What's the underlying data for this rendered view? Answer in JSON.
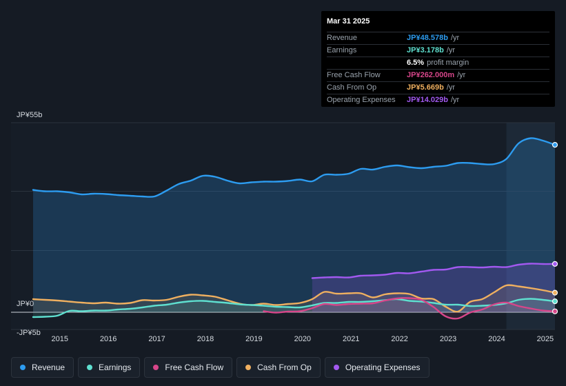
{
  "tooltip": {
    "date": "Mar 31 2025",
    "rows": [
      {
        "label": "Revenue",
        "value": "JP¥48.578b",
        "unit": "/yr",
        "color": "#2d9cf0"
      },
      {
        "label": "Earnings",
        "value": "JP¥3.178b",
        "unit": "/yr",
        "color": "#5fe0d0"
      },
      {
        "label": "",
        "value": "6.5%",
        "unit": "profit margin",
        "color": "#ffffff"
      },
      {
        "label": "Free Cash Flow",
        "value": "JP¥262.000m",
        "unit": "/yr",
        "color": "#d7468a"
      },
      {
        "label": "Cash From Op",
        "value": "JP¥5.669b",
        "unit": "/yr",
        "color": "#f0b060"
      },
      {
        "label": "Operating Expenses",
        "value": "JP¥14.029b",
        "unit": "/yr",
        "color": "#a259f0"
      }
    ]
  },
  "legend": [
    {
      "label": "Revenue",
      "color": "#2d9cf0"
    },
    {
      "label": "Earnings",
      "color": "#5fe0d0"
    },
    {
      "label": "Free Cash Flow",
      "color": "#d7468a"
    },
    {
      "label": "Cash From Op",
      "color": "#f0b060"
    },
    {
      "label": "Operating Expenses",
      "color": "#a259f0"
    }
  ],
  "chart_data": {
    "type": "area",
    "title": "",
    "xlabel": "",
    "ylabel": "",
    "y_tick_labels": [
      {
        "label": "JP¥55b",
        "value": 55
      },
      {
        "label": "JP¥0",
        "value": 0
      },
      {
        "label": "-JP¥5b",
        "value": -5
      }
    ],
    "ylim": [
      -5,
      55
    ],
    "xlim": [
      2014.5,
      2025.25
    ],
    "x_ticks": [
      2015,
      2016,
      2017,
      2018,
      2019,
      2020,
      2021,
      2022,
      2023,
      2024,
      2025
    ],
    "highlight_from": 2024.25,
    "series": [
      {
        "name": "Revenue",
        "color": "#2d9cf0",
        "points": [
          [
            2014.5,
            35.5
          ],
          [
            2014.75,
            35.1
          ],
          [
            2015.0,
            35.1
          ],
          [
            2015.25,
            34.8
          ],
          [
            2015.5,
            34.2
          ],
          [
            2015.75,
            34.4
          ],
          [
            2016.0,
            34.3
          ],
          [
            2016.25,
            34.0
          ],
          [
            2016.5,
            33.8
          ],
          [
            2016.75,
            33.6
          ],
          [
            2017.0,
            33.6
          ],
          [
            2017.25,
            35.3
          ],
          [
            2017.5,
            37.2
          ],
          [
            2017.75,
            38.2
          ],
          [
            2018.0,
            39.6
          ],
          [
            2018.25,
            39.3
          ],
          [
            2018.5,
            38.2
          ],
          [
            2018.75,
            37.4
          ],
          [
            2019.0,
            37.7
          ],
          [
            2019.25,
            37.9
          ],
          [
            2019.5,
            37.9
          ],
          [
            2019.75,
            38.1
          ],
          [
            2020.0,
            38.5
          ],
          [
            2020.25,
            38.0
          ],
          [
            2020.5,
            39.9
          ],
          [
            2020.75,
            39.9
          ],
          [
            2021.0,
            40.2
          ],
          [
            2021.25,
            41.6
          ],
          [
            2021.5,
            41.4
          ],
          [
            2021.75,
            42.2
          ],
          [
            2022.0,
            42.6
          ],
          [
            2022.25,
            42.1
          ],
          [
            2022.5,
            41.8
          ],
          [
            2022.75,
            42.2
          ],
          [
            2023.0,
            42.5
          ],
          [
            2023.25,
            43.3
          ],
          [
            2023.5,
            43.3
          ],
          [
            2023.75,
            43.0
          ],
          [
            2024.0,
            43.0
          ],
          [
            2024.25,
            44.5
          ],
          [
            2024.5,
            49.0
          ],
          [
            2024.75,
            50.5
          ],
          [
            2025.0,
            49.8
          ],
          [
            2025.25,
            48.578
          ]
        ]
      },
      {
        "name": "Operating Expenses",
        "color": "#a259f0",
        "points": [
          [
            2020.25,
            9.9
          ],
          [
            2020.5,
            10.1
          ],
          [
            2020.75,
            10.2
          ],
          [
            2021.0,
            10.1
          ],
          [
            2021.25,
            10.6
          ],
          [
            2021.5,
            10.7
          ],
          [
            2021.75,
            10.9
          ],
          [
            2022.0,
            11.4
          ],
          [
            2022.25,
            11.3
          ],
          [
            2022.5,
            11.8
          ],
          [
            2022.75,
            12.3
          ],
          [
            2023.0,
            12.4
          ],
          [
            2023.25,
            13.1
          ],
          [
            2023.5,
            13.1
          ],
          [
            2023.75,
            13.0
          ],
          [
            2024.0,
            13.2
          ],
          [
            2024.25,
            13.1
          ],
          [
            2024.5,
            13.8
          ],
          [
            2024.75,
            14.1
          ],
          [
            2025.0,
            14.0
          ],
          [
            2025.25,
            14.029
          ]
        ]
      },
      {
        "name": "Cash From Op",
        "color": "#f0b060",
        "points": [
          [
            2014.5,
            3.8
          ],
          [
            2014.75,
            3.6
          ],
          [
            2015.0,
            3.4
          ],
          [
            2015.25,
            3.1
          ],
          [
            2015.5,
            2.8
          ],
          [
            2015.75,
            2.6
          ],
          [
            2016.0,
            2.8
          ],
          [
            2016.25,
            2.5
          ],
          [
            2016.5,
            2.7
          ],
          [
            2016.75,
            3.5
          ],
          [
            2017.0,
            3.4
          ],
          [
            2017.25,
            3.6
          ],
          [
            2017.5,
            4.5
          ],
          [
            2017.75,
            5.1
          ],
          [
            2018.0,
            4.9
          ],
          [
            2018.25,
            4.5
          ],
          [
            2018.5,
            3.5
          ],
          [
            2018.75,
            2.5
          ],
          [
            2019.0,
            2.1
          ],
          [
            2019.25,
            2.5
          ],
          [
            2019.5,
            2.1
          ],
          [
            2019.75,
            2.4
          ],
          [
            2020.0,
            2.7
          ],
          [
            2020.25,
            3.8
          ],
          [
            2020.5,
            5.9
          ],
          [
            2020.75,
            5.4
          ],
          [
            2021.0,
            5.5
          ],
          [
            2021.25,
            5.5
          ],
          [
            2021.5,
            4.3
          ],
          [
            2021.75,
            5.2
          ],
          [
            2022.0,
            5.5
          ],
          [
            2022.25,
            5.3
          ],
          [
            2022.5,
            4.0
          ],
          [
            2022.75,
            3.8
          ],
          [
            2023.0,
            1.6
          ],
          [
            2023.25,
            0.2
          ],
          [
            2023.5,
            3.0
          ],
          [
            2023.75,
            3.8
          ],
          [
            2024.0,
            5.8
          ],
          [
            2024.25,
            7.8
          ],
          [
            2024.5,
            7.5
          ],
          [
            2024.75,
            7.0
          ],
          [
            2025.0,
            6.4
          ],
          [
            2025.25,
            5.669
          ]
        ]
      },
      {
        "name": "Earnings",
        "color": "#5fe0d0",
        "points": [
          [
            2014.5,
            -1.4
          ],
          [
            2014.75,
            -1.3
          ],
          [
            2015.0,
            -1.0
          ],
          [
            2015.25,
            0.4
          ],
          [
            2015.5,
            0.3
          ],
          [
            2015.75,
            0.5
          ],
          [
            2016.0,
            0.5
          ],
          [
            2016.25,
            0.8
          ],
          [
            2016.5,
            1.0
          ],
          [
            2016.75,
            1.4
          ],
          [
            2017.0,
            1.9
          ],
          [
            2017.25,
            2.2
          ],
          [
            2017.5,
            2.8
          ],
          [
            2017.75,
            3.2
          ],
          [
            2018.0,
            3.3
          ],
          [
            2018.25,
            3.0
          ],
          [
            2018.5,
            2.7
          ],
          [
            2018.75,
            2.3
          ],
          [
            2019.0,
            2.1
          ],
          [
            2019.25,
            1.9
          ],
          [
            2019.5,
            1.6
          ],
          [
            2019.75,
            1.5
          ],
          [
            2020.0,
            1.4
          ],
          [
            2020.25,
            2.0
          ],
          [
            2020.5,
            2.7
          ],
          [
            2020.75,
            2.7
          ],
          [
            2021.0,
            3.0
          ],
          [
            2021.25,
            3.0
          ],
          [
            2021.5,
            3.2
          ],
          [
            2021.75,
            3.5
          ],
          [
            2022.0,
            3.8
          ],
          [
            2022.25,
            3.3
          ],
          [
            2022.5,
            3.1
          ],
          [
            2022.75,
            2.7
          ],
          [
            2023.0,
            2.2
          ],
          [
            2023.25,
            2.2
          ],
          [
            2023.5,
            1.8
          ],
          [
            2023.75,
            1.9
          ],
          [
            2024.0,
            2.1
          ],
          [
            2024.25,
            2.6
          ],
          [
            2024.5,
            3.6
          ],
          [
            2024.75,
            3.9
          ],
          [
            2025.0,
            3.6
          ],
          [
            2025.25,
            3.178
          ]
        ]
      },
      {
        "name": "Free Cash Flow",
        "color": "#d7468a",
        "points": [
          [
            2019.25,
            0.3
          ],
          [
            2019.5,
            -0.1
          ],
          [
            2019.75,
            0.2
          ],
          [
            2020.0,
            0.3
          ],
          [
            2020.25,
            1.2
          ],
          [
            2020.5,
            2.4
          ],
          [
            2020.75,
            2.1
          ],
          [
            2021.0,
            2.4
          ],
          [
            2021.25,
            2.5
          ],
          [
            2021.5,
            2.6
          ],
          [
            2021.75,
            3.4
          ],
          [
            2022.0,
            4.0
          ],
          [
            2022.25,
            4.1
          ],
          [
            2022.5,
            3.6
          ],
          [
            2022.75,
            1.5
          ],
          [
            2023.0,
            -1.2
          ],
          [
            2023.25,
            -1.8
          ],
          [
            2023.5,
            -0.1
          ],
          [
            2023.75,
            0.8
          ],
          [
            2024.0,
            2.3
          ],
          [
            2024.25,
            2.8
          ],
          [
            2024.5,
            1.8
          ],
          [
            2024.75,
            1.1
          ],
          [
            2025.0,
            0.5
          ],
          [
            2025.25,
            0.262
          ]
        ]
      }
    ]
  }
}
